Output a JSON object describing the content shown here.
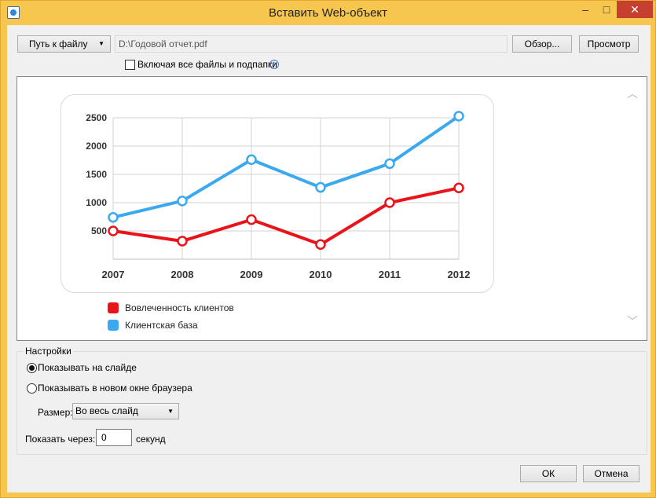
{
  "window": {
    "title": "Вставить Web-объект",
    "minimize_glyph": "–",
    "maximize_glyph": "□",
    "close_glyph": "✕"
  },
  "toolbar": {
    "path_button_label": "Путь к файлу",
    "path_value": "D:\\Годовой отчет.pdf",
    "browse_label": "Обзор...",
    "preview_label": "Просмотр",
    "include_subfolders_label": "Включая все файлы и подпапки",
    "include_subfolders_checked": false,
    "info_glyph": "i"
  },
  "chart_data": {
    "type": "line",
    "x": [
      "2007",
      "2008",
      "2009",
      "2010",
      "2011",
      "2012"
    ],
    "ylim": [
      0,
      2500
    ],
    "yticks": [
      500,
      1000,
      1500,
      2000,
      2500
    ],
    "grid": true,
    "series": [
      {
        "name": "Вовлеченность клиентов",
        "color": "#e8141a",
        "values": [
          500,
          320,
          700,
          260,
          1000,
          1260
        ]
      },
      {
        "name": "Клиентская база",
        "color": "#3aa9ef",
        "values": [
          740,
          1030,
          1760,
          1270,
          1690,
          2530
        ]
      }
    ]
  },
  "settings": {
    "legend": "Настройки",
    "show_on_slide_label": "Показывать на слайде",
    "show_on_slide_selected": true,
    "show_in_browser_label": "Показывать в новом окне браузера",
    "show_in_browser_selected": false,
    "size_label": "Размер:",
    "size_value": "Во весь слайд",
    "delay_label": "Показать через:",
    "delay_value": "0",
    "delay_unit": "секунд"
  },
  "footer": {
    "ok_label": "ОК",
    "cancel_label": "Отмена"
  }
}
